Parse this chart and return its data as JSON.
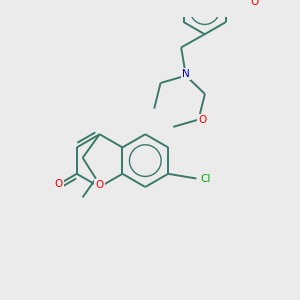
{
  "bg_color": "#ebebeb",
  "bond_color": "#3a7a6a",
  "bond_width": 1.4,
  "atom_colors": {
    "O": "#ff0000",
    "N": "#0000cc",
    "Cl": "#00aa00",
    "C": "#3a7a6a"
  },
  "figsize": [
    3.0,
    3.0
  ],
  "dpi": 100
}
